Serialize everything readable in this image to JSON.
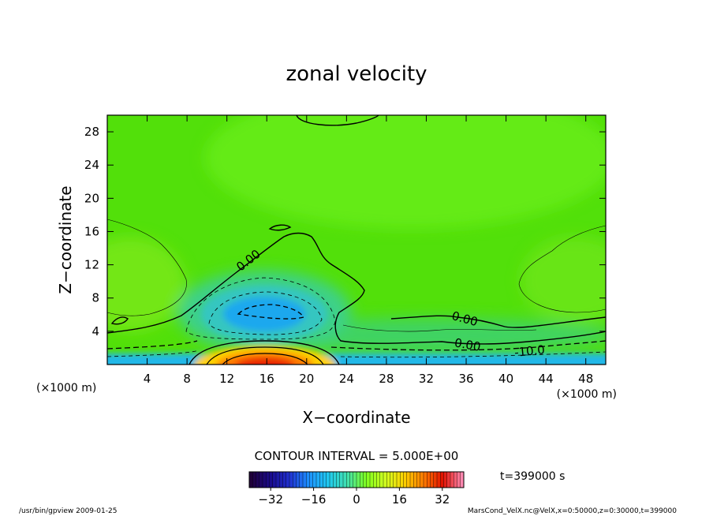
{
  "chart_data": {
    "type": "heatmap",
    "title": "zonal velocity",
    "xlabel": "X−coordinate",
    "ylabel": "Z−coordinate",
    "x_unit_left": "(×1000 m)",
    "x_unit_right": "(×1000 m)",
    "xlim": [
      0,
      50
    ],
    "ylim": [
      0,
      30
    ],
    "x_ticks": [
      4,
      8,
      12,
      16,
      20,
      24,
      28,
      32,
      36,
      40,
      44,
      48
    ],
    "y_ticks": [
      4,
      8,
      12,
      16,
      20,
      24,
      28
    ],
    "contour_interval_text": "CONTOUR INTERVAL = 5.000E+00",
    "contour_labels": [
      {
        "text": "0.00",
        "x": 14.0,
        "z": 12.8
      },
      {
        "text": "0.00",
        "x": 36.0,
        "z": 5.5
      },
      {
        "text": "0.00",
        "x": 36.0,
        "z": 2.6
      },
      {
        "text": "-10.0",
        "x": 42.5,
        "z": 1.8
      }
    ],
    "colorbar": {
      "min": -40,
      "max": 40,
      "ticks": [
        -32,
        -16,
        0,
        16,
        32
      ],
      "tick_labels": [
        "−32",
        "−16",
        "0",
        "16",
        "32"
      ],
      "colors": [
        "#20003a",
        "#1a0a8a",
        "#2030d0",
        "#1e90ff",
        "#20c8f0",
        "#40e0b0",
        "#7fff20",
        "#d0ff20",
        "#ffd000",
        "#ff7a00",
        "#e01000",
        "#ff88b0"
      ]
    },
    "time_label": "t=399000 s",
    "footer_left": "/usr/bin/gpview  2009-01-25",
    "footer_right": "MarsCond_VelX.nc@VelX,x=0:50000,z=0:30000,t=399000",
    "features": [
      {
        "name": "surface positive jet",
        "x": 16,
        "z": 0.5,
        "value": 35
      },
      {
        "name": "negative core",
        "x": 16,
        "z": 5.5,
        "value": -14
      },
      {
        "name": "near-surface negative layer",
        "x": 36,
        "z": 0.8,
        "value": -12
      }
    ]
  }
}
